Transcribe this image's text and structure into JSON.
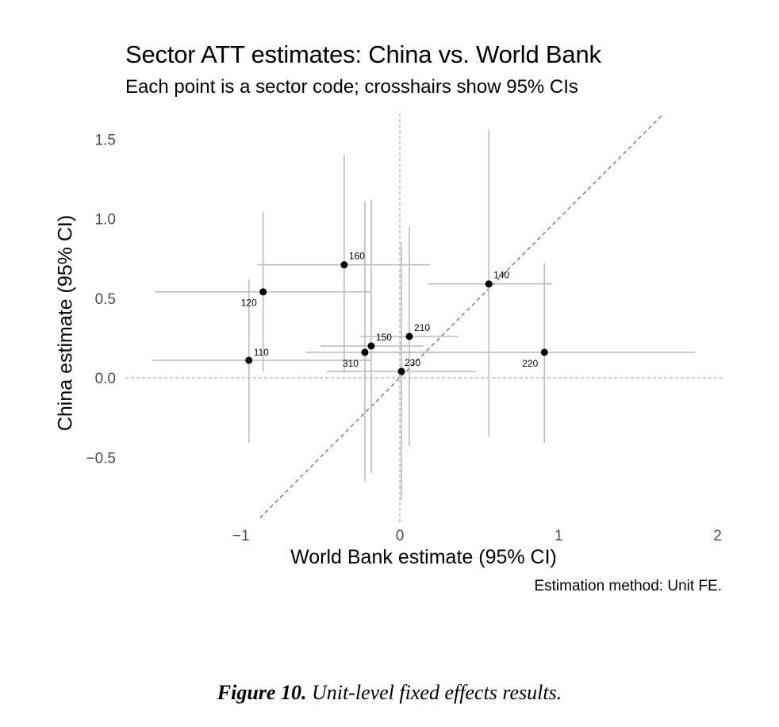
{
  "header": {
    "title": "Sector ATT estimates: China vs. World Bank",
    "subtitle": "Each point is a sector code; crosshairs show 95% CIs"
  },
  "axes": {
    "xlabel": "World Bank estimate (95% CI)",
    "ylabel": "China estimate (95% CI)",
    "x_ticks": [
      "−1",
      "0",
      "1",
      "2"
    ],
    "y_ticks": [
      "1.5",
      "1.0",
      "0.5",
      "0.0",
      "−0.5"
    ]
  },
  "note": "Estimation method: Unit FE.",
  "figure_caption": {
    "label": "Figure 10.",
    "text": "Unit-level fixed effects results."
  },
  "colors": {
    "point": "#000000",
    "ci_line": "#bdbdbd",
    "reference_line": "#999999",
    "diagonal": "#555555",
    "tick_text": "#4d4d4d"
  },
  "chart_data": {
    "type": "scatter",
    "title": "Sector ATT estimates: China vs. World Bank",
    "subtitle": "Each point is a sector code; crosshairs show 95% CIs",
    "xlabel": "World Bank estimate (95% CI)",
    "ylabel": "China estimate (95% CI)",
    "xlim": [
      -1.75,
      2.0
    ],
    "ylim": [
      -0.9,
      1.65
    ],
    "x_ticks": [
      -1,
      0,
      1,
      2
    ],
    "y_ticks": [
      -0.5,
      0.0,
      0.5,
      1.0,
      1.5
    ],
    "grid": false,
    "reference_lines": {
      "x_zero": true,
      "y_zero": true,
      "diagonal_45": true
    },
    "caption": "Estimation method: Unit FE.",
    "points": [
      {
        "label": "110",
        "x": -0.95,
        "y": 0.11,
        "x_lo": -1.56,
        "x_hi": -0.18,
        "y_lo": -0.41,
        "y_hi": 0.62
      },
      {
        "label": "120",
        "x": -0.86,
        "y": 0.54,
        "x_lo": -1.54,
        "x_hi": -0.18,
        "y_lo": 0.04,
        "y_hi": 1.04
      },
      {
        "label": "140",
        "x": 0.56,
        "y": 0.59,
        "x_lo": 0.18,
        "x_hi": 0.96,
        "y_lo": -0.37,
        "y_hi": 1.56
      },
      {
        "label": "150",
        "x": -0.18,
        "y": 0.2,
        "x_lo": -0.5,
        "x_hi": 0.15,
        "y_lo": -0.6,
        "y_hi": 1.12
      },
      {
        "label": "160",
        "x": -0.35,
        "y": 0.71,
        "x_lo": -0.9,
        "x_hi": 0.19,
        "y_lo": 0.03,
        "y_hi": 1.4
      },
      {
        "label": "210",
        "x": 0.06,
        "y": 0.26,
        "x_lo": -0.25,
        "x_hi": 0.37,
        "y_lo": -0.43,
        "y_hi": 0.95
      },
      {
        "label": "220",
        "x": 0.91,
        "y": 0.16,
        "x_lo": -0.03,
        "x_hi": 1.86,
        "y_lo": -0.41,
        "y_hi": 0.72
      },
      {
        "label": "230",
        "x": 0.01,
        "y": 0.04,
        "x_lo": -0.46,
        "x_hi": 0.48,
        "y_lo": -0.77,
        "y_hi": 0.85
      },
      {
        "label": "310",
        "x": -0.22,
        "y": 0.16,
        "x_lo": -0.59,
        "x_hi": 0.22,
        "y_lo": -0.65,
        "y_hi": 1.11
      }
    ],
    "label_offsets": {
      "110": [
        6,
        -6
      ],
      "120": [
        -28,
        18
      ],
      "140": [
        6,
        -7
      ],
      "150": [
        6,
        -7
      ],
      "160": [
        6,
        -7
      ],
      "210": [
        6,
        -7
      ],
      "220": [
        -28,
        18
      ],
      "230": [
        4,
        -7
      ],
      "310": [
        -28,
        18
      ]
    }
  }
}
